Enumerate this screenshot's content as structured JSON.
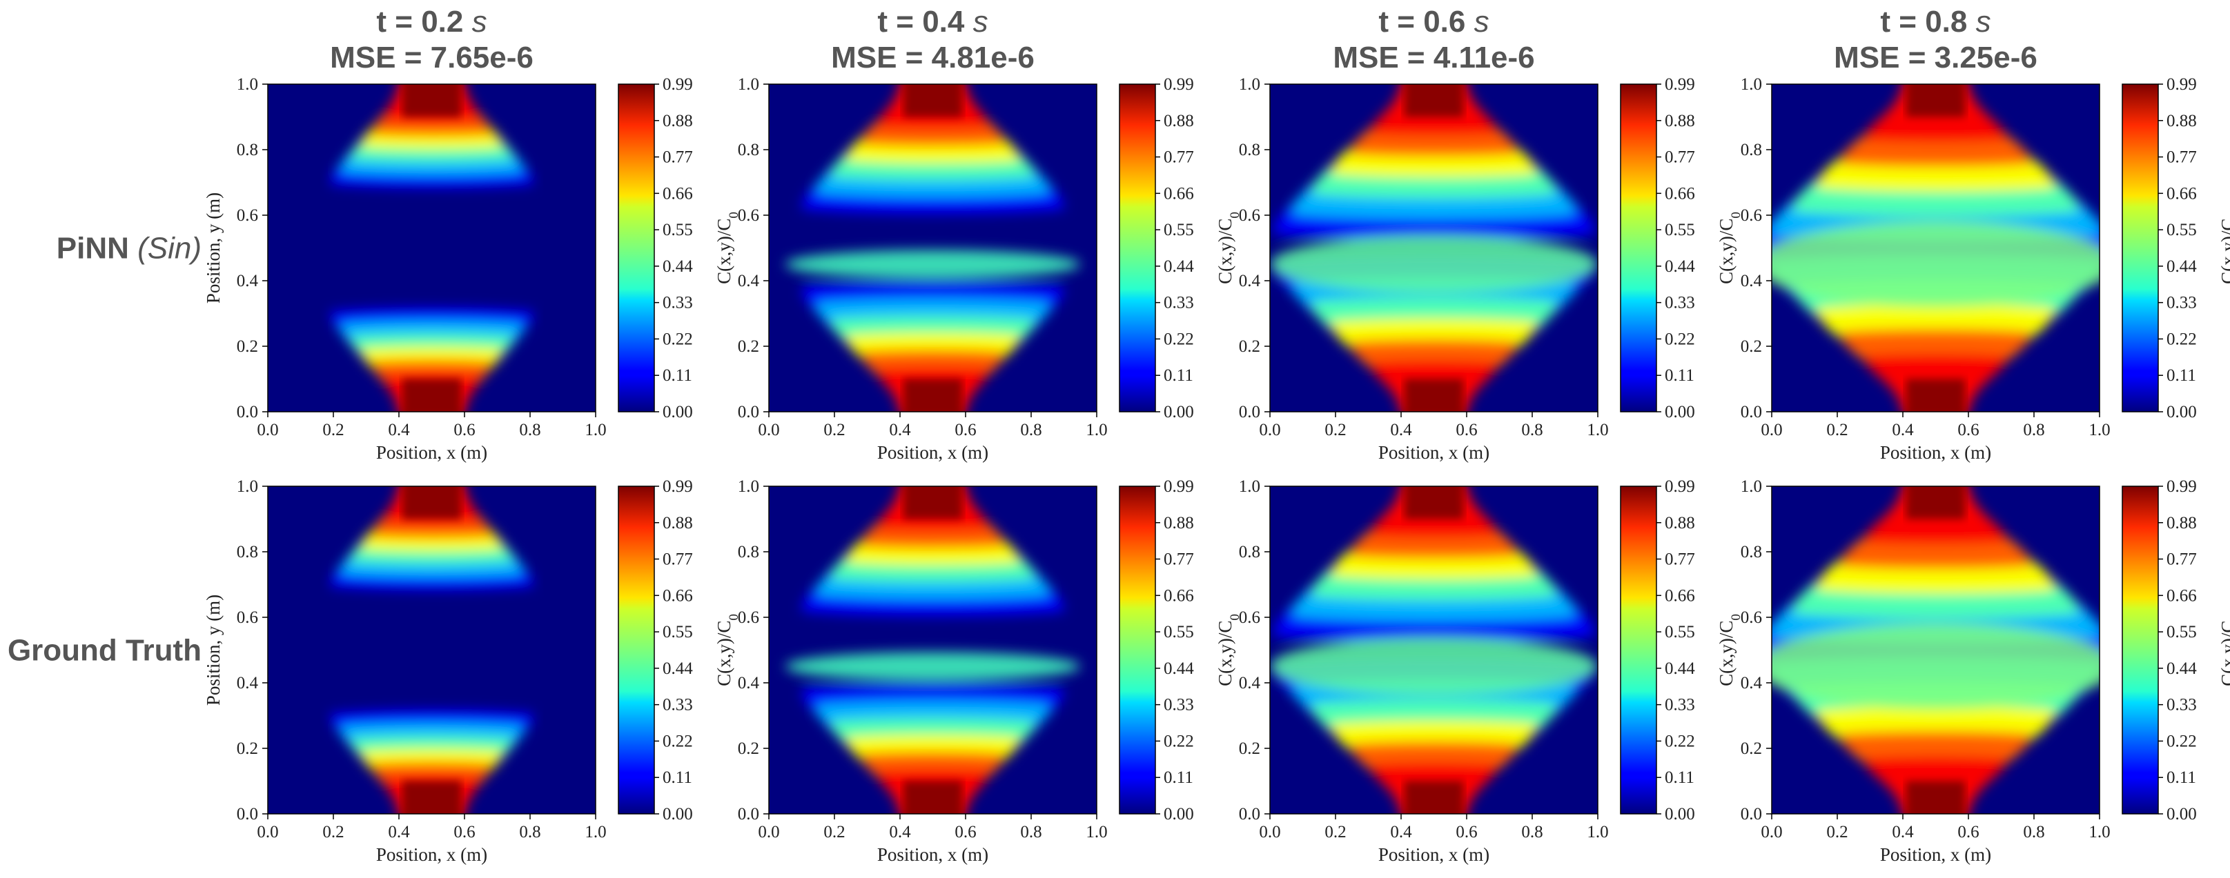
{
  "figure": {
    "row_labels": [
      {
        "main": "PiNN",
        "suffix": "(Sin)"
      },
      {
        "main": "Ground Truth",
        "suffix": ""
      }
    ]
  },
  "chart_data": {
    "type": "heatmap",
    "columns": [
      {
        "t_prefix": "t = 0.2",
        "t_unit": "s",
        "mse": "MSE = 7.65e-6",
        "t": 0.2
      },
      {
        "t_prefix": "t = 0.4",
        "t_unit": "s",
        "mse": "MSE = 4.81e-6",
        "t": 0.4
      },
      {
        "t_prefix": "t = 0.6",
        "t_unit": "s",
        "mse": "MSE = 4.11e-6",
        "t": 0.6
      },
      {
        "t_prefix": "t = 0.8",
        "t_unit": "s",
        "mse": "MSE = 3.25e-6",
        "t": 0.8
      }
    ],
    "rows": [
      "PiNN (Sin)",
      "Ground Truth"
    ],
    "xlabel": "Position, x (m)",
    "ylabel": "Position, y (m)",
    "xlim": [
      0.0,
      1.0
    ],
    "ylim": [
      0.0,
      1.0
    ],
    "xticks": [
      "0.0",
      "0.2",
      "0.4",
      "0.6",
      "0.8",
      "1.0"
    ],
    "yticks": [
      "0.0",
      "0.2",
      "0.4",
      "0.6",
      "0.8",
      "1.0"
    ],
    "colorbar": {
      "label": "C(x,y)/C",
      "label_sub": "0",
      "ticks": [
        "0.00",
        "0.11",
        "0.22",
        "0.33",
        "0.44",
        "0.55",
        "0.66",
        "0.77",
        "0.88",
        "0.99"
      ],
      "range": [
        0.0,
        0.99
      ],
      "colormap": "jet"
    },
    "source_inlet": {
      "x_range": [
        0.4,
        0.6
      ],
      "boundaries": [
        "y = 0",
        "y = 1"
      ],
      "concentration": 0.99
    }
  }
}
